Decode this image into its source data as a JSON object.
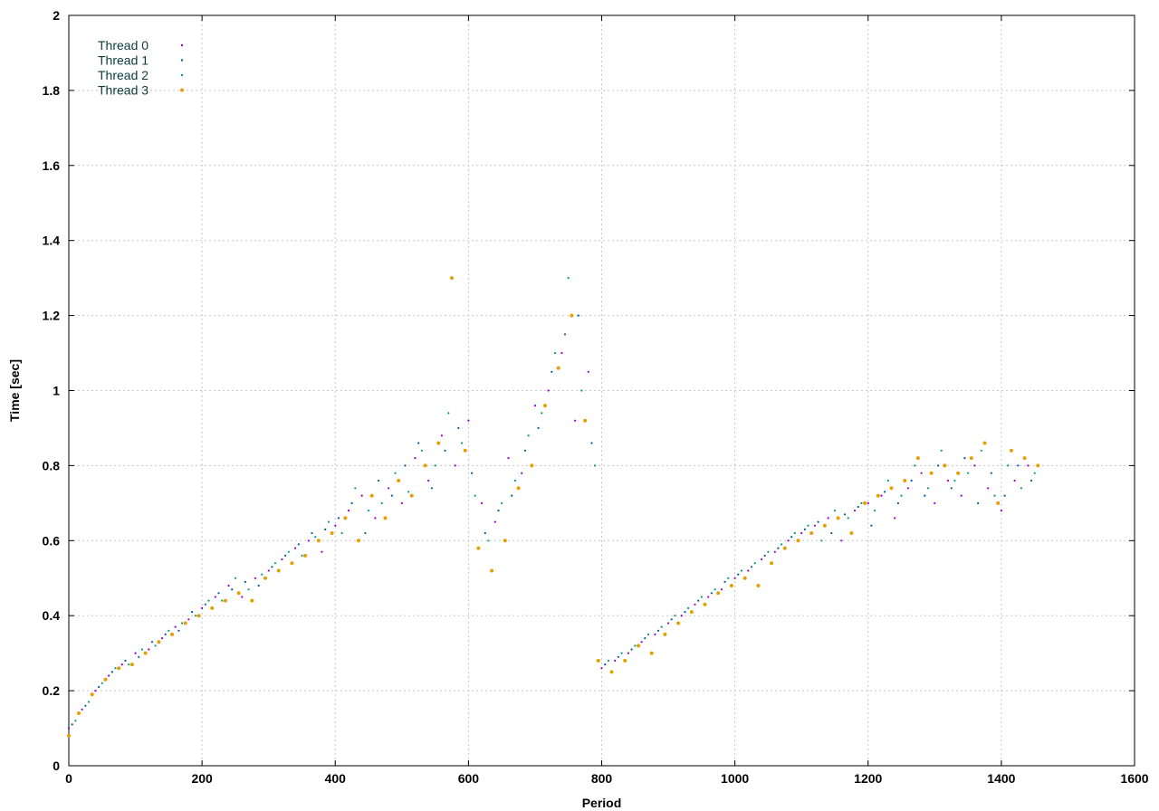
{
  "chart_data": {
    "type": "scatter",
    "title": "",
    "xlabel": "Period",
    "ylabel": "Time [sec]",
    "xlim": [
      0,
      1600
    ],
    "ylim": [
      0,
      2
    ],
    "xticks": [
      0,
      200,
      400,
      600,
      800,
      1000,
      1200,
      1400,
      1600
    ],
    "yticks": [
      0,
      0.2,
      0.4,
      0.6,
      0.8,
      1,
      1.2,
      1.4,
      1.6,
      1.8,
      2
    ],
    "grid": true,
    "legend_position": "top-left",
    "series": [
      {
        "name": "Thread 0",
        "color": "#9400d3",
        "points": [
          [
            0,
            0.1
          ],
          [
            20,
            0.15
          ],
          [
            40,
            0.2
          ],
          [
            60,
            0.24
          ],
          [
            80,
            0.27
          ],
          [
            100,
            0.3
          ],
          [
            120,
            0.31
          ],
          [
            140,
            0.34
          ],
          [
            160,
            0.37
          ],
          [
            180,
            0.39
          ],
          [
            200,
            0.42
          ],
          [
            220,
            0.45
          ],
          [
            240,
            0.48
          ],
          [
            260,
            0.45
          ],
          [
            280,
            0.5
          ],
          [
            300,
            0.52
          ],
          [
            320,
            0.55
          ],
          [
            340,
            0.58
          ],
          [
            360,
            0.6
          ],
          [
            380,
            0.57
          ],
          [
            400,
            0.64
          ],
          [
            420,
            0.68
          ],
          [
            440,
            0.72
          ],
          [
            460,
            0.66
          ],
          [
            480,
            0.74
          ],
          [
            500,
            0.7
          ],
          [
            520,
            0.82
          ],
          [
            540,
            0.76
          ],
          [
            560,
            0.88
          ],
          [
            580,
            0.8
          ],
          [
            600,
            0.92
          ],
          [
            620,
            0.7
          ],
          [
            640,
            0.65
          ],
          [
            660,
            0.82
          ],
          [
            680,
            0.78
          ],
          [
            700,
            0.96
          ],
          [
            720,
            1.0
          ],
          [
            740,
            1.1
          ],
          [
            760,
            0.92
          ],
          [
            780,
            1.05
          ],
          [
            800,
            0.26
          ],
          [
            820,
            0.28
          ],
          [
            840,
            0.3
          ],
          [
            860,
            0.33
          ],
          [
            880,
            0.35
          ],
          [
            900,
            0.38
          ],
          [
            920,
            0.4
          ],
          [
            940,
            0.43
          ],
          [
            960,
            0.45
          ],
          [
            980,
            0.47
          ],
          [
            1000,
            0.5
          ],
          [
            1020,
            0.52
          ],
          [
            1040,
            0.55
          ],
          [
            1060,
            0.57
          ],
          [
            1080,
            0.6
          ],
          [
            1100,
            0.62
          ],
          [
            1120,
            0.64
          ],
          [
            1140,
            0.66
          ],
          [
            1160,
            0.6
          ],
          [
            1180,
            0.68
          ],
          [
            1200,
            0.7
          ],
          [
            1220,
            0.72
          ],
          [
            1240,
            0.66
          ],
          [
            1260,
            0.74
          ],
          [
            1280,
            0.78
          ],
          [
            1300,
            0.7
          ],
          [
            1320,
            0.76
          ],
          [
            1340,
            0.72
          ],
          [
            1360,
            0.8
          ],
          [
            1380,
            0.74
          ],
          [
            1400,
            0.68
          ],
          [
            1420,
            0.76
          ],
          [
            1440,
            0.8
          ]
        ]
      },
      {
        "name": "Thread 1",
        "color": "#005a9c",
        "points": [
          [
            5,
            0.11
          ],
          [
            25,
            0.16
          ],
          [
            45,
            0.21
          ],
          [
            65,
            0.25
          ],
          [
            85,
            0.28
          ],
          [
            105,
            0.29
          ],
          [
            125,
            0.33
          ],
          [
            145,
            0.35
          ],
          [
            165,
            0.36
          ],
          [
            185,
            0.41
          ],
          [
            205,
            0.43
          ],
          [
            225,
            0.46
          ],
          [
            245,
            0.47
          ],
          [
            265,
            0.49
          ],
          [
            285,
            0.48
          ],
          [
            305,
            0.53
          ],
          [
            325,
            0.56
          ],
          [
            345,
            0.59
          ],
          [
            365,
            0.62
          ],
          [
            385,
            0.63
          ],
          [
            405,
            0.66
          ],
          [
            425,
            0.7
          ],
          [
            445,
            0.62
          ],
          [
            465,
            0.76
          ],
          [
            485,
            0.72
          ],
          [
            505,
            0.8
          ],
          [
            525,
            0.86
          ],
          [
            545,
            0.74
          ],
          [
            565,
            0.84
          ],
          [
            585,
            0.9
          ],
          [
            605,
            0.78
          ],
          [
            625,
            0.62
          ],
          [
            645,
            0.68
          ],
          [
            665,
            0.72
          ],
          [
            685,
            0.84
          ],
          [
            705,
            0.9
          ],
          [
            725,
            1.05
          ],
          [
            745,
            1.15
          ],
          [
            765,
            1.2
          ],
          [
            785,
            0.86
          ],
          [
            805,
            0.27
          ],
          [
            825,
            0.29
          ],
          [
            845,
            0.31
          ],
          [
            865,
            0.34
          ],
          [
            885,
            0.36
          ],
          [
            905,
            0.39
          ],
          [
            925,
            0.41
          ],
          [
            945,
            0.44
          ],
          [
            965,
            0.46
          ],
          [
            985,
            0.49
          ],
          [
            1005,
            0.51
          ],
          [
            1025,
            0.53
          ],
          [
            1045,
            0.56
          ],
          [
            1065,
            0.58
          ],
          [
            1085,
            0.61
          ],
          [
            1105,
            0.63
          ],
          [
            1125,
            0.65
          ],
          [
            1145,
            0.62
          ],
          [
            1165,
            0.67
          ],
          [
            1185,
            0.69
          ],
          [
            1205,
            0.64
          ],
          [
            1225,
            0.73
          ],
          [
            1245,
            0.7
          ],
          [
            1265,
            0.76
          ],
          [
            1285,
            0.72
          ],
          [
            1305,
            0.8
          ],
          [
            1325,
            0.74
          ],
          [
            1345,
            0.82
          ],
          [
            1365,
            0.7
          ],
          [
            1385,
            0.78
          ],
          [
            1405,
            0.72
          ],
          [
            1425,
            0.8
          ],
          [
            1445,
            0.76
          ]
        ]
      },
      {
        "name": "Thread 2",
        "color": "#009e73",
        "points": [
          [
            10,
            0.12
          ],
          [
            30,
            0.17
          ],
          [
            50,
            0.22
          ],
          [
            70,
            0.26
          ],
          [
            90,
            0.27
          ],
          [
            110,
            0.31
          ],
          [
            130,
            0.32
          ],
          [
            150,
            0.36
          ],
          [
            170,
            0.38
          ],
          [
            190,
            0.4
          ],
          [
            210,
            0.44
          ],
          [
            230,
            0.44
          ],
          [
            250,
            0.5
          ],
          [
            270,
            0.47
          ],
          [
            290,
            0.51
          ],
          [
            310,
            0.54
          ],
          [
            330,
            0.57
          ],
          [
            350,
            0.56
          ],
          [
            370,
            0.61
          ],
          [
            390,
            0.65
          ],
          [
            410,
            0.62
          ],
          [
            430,
            0.74
          ],
          [
            450,
            0.68
          ],
          [
            470,
            0.7
          ],
          [
            490,
            0.78
          ],
          [
            510,
            0.73
          ],
          [
            530,
            0.84
          ],
          [
            550,
            0.8
          ],
          [
            570,
            0.94
          ],
          [
            590,
            0.86
          ],
          [
            610,
            0.72
          ],
          [
            630,
            0.6
          ],
          [
            650,
            0.7
          ],
          [
            670,
            0.76
          ],
          [
            690,
            0.88
          ],
          [
            710,
            0.94
          ],
          [
            730,
            1.1
          ],
          [
            750,
            1.3
          ],
          [
            770,
            1.0
          ],
          [
            790,
            0.8
          ],
          [
            810,
            0.28
          ],
          [
            830,
            0.3
          ],
          [
            850,
            0.32
          ],
          [
            870,
            0.35
          ],
          [
            890,
            0.37
          ],
          [
            910,
            0.4
          ],
          [
            930,
            0.42
          ],
          [
            950,
            0.45
          ],
          [
            970,
            0.47
          ],
          [
            990,
            0.5
          ],
          [
            1010,
            0.52
          ],
          [
            1030,
            0.54
          ],
          [
            1050,
            0.57
          ],
          [
            1070,
            0.59
          ],
          [
            1090,
            0.62
          ],
          [
            1110,
            0.64
          ],
          [
            1130,
            0.6
          ],
          [
            1150,
            0.68
          ],
          [
            1170,
            0.66
          ],
          [
            1190,
            0.7
          ],
          [
            1210,
            0.68
          ],
          [
            1230,
            0.76
          ],
          [
            1250,
            0.72
          ],
          [
            1270,
            0.8
          ],
          [
            1290,
            0.74
          ],
          [
            1310,
            0.84
          ],
          [
            1330,
            0.76
          ],
          [
            1350,
            0.78
          ],
          [
            1370,
            0.84
          ],
          [
            1390,
            0.72
          ],
          [
            1410,
            0.8
          ],
          [
            1430,
            0.74
          ],
          [
            1450,
            0.78
          ]
        ]
      },
      {
        "name": "Thread 3",
        "color": "#e69f00",
        "points": [
          [
            0,
            0.08
          ],
          [
            15,
            0.14
          ],
          [
            35,
            0.19
          ],
          [
            55,
            0.23
          ],
          [
            75,
            0.26
          ],
          [
            95,
            0.27
          ],
          [
            115,
            0.3
          ],
          [
            135,
            0.33
          ],
          [
            155,
            0.35
          ],
          [
            175,
            0.38
          ],
          [
            195,
            0.4
          ],
          [
            215,
            0.42
          ],
          [
            235,
            0.44
          ],
          [
            255,
            0.46
          ],
          [
            275,
            0.44
          ],
          [
            295,
            0.5
          ],
          [
            315,
            0.52
          ],
          [
            335,
            0.54
          ],
          [
            355,
            0.56
          ],
          [
            375,
            0.6
          ],
          [
            395,
            0.62
          ],
          [
            415,
            0.66
          ],
          [
            435,
            0.6
          ],
          [
            455,
            0.72
          ],
          [
            475,
            0.66
          ],
          [
            495,
            0.76
          ],
          [
            515,
            0.72
          ],
          [
            535,
            0.8
          ],
          [
            555,
            0.86
          ],
          [
            575,
            1.3
          ],
          [
            595,
            0.84
          ],
          [
            615,
            0.58
          ],
          [
            635,
            0.52
          ],
          [
            655,
            0.6
          ],
          [
            675,
            0.74
          ],
          [
            695,
            0.8
          ],
          [
            715,
            0.96
          ],
          [
            735,
            1.06
          ],
          [
            755,
            1.2
          ],
          [
            775,
            0.92
          ],
          [
            795,
            0.28
          ],
          [
            815,
            0.25
          ],
          [
            835,
            0.28
          ],
          [
            855,
            0.32
          ],
          [
            875,
            0.3
          ],
          [
            895,
            0.35
          ],
          [
            915,
            0.38
          ],
          [
            935,
            0.41
          ],
          [
            955,
            0.43
          ],
          [
            975,
            0.46
          ],
          [
            995,
            0.48
          ],
          [
            1015,
            0.5
          ],
          [
            1035,
            0.48
          ],
          [
            1055,
            0.54
          ],
          [
            1075,
            0.58
          ],
          [
            1095,
            0.6
          ],
          [
            1115,
            0.62
          ],
          [
            1135,
            0.64
          ],
          [
            1155,
            0.66
          ],
          [
            1175,
            0.62
          ],
          [
            1195,
            0.7
          ],
          [
            1215,
            0.72
          ],
          [
            1235,
            0.74
          ],
          [
            1255,
            0.76
          ],
          [
            1275,
            0.82
          ],
          [
            1295,
            0.78
          ],
          [
            1315,
            0.8
          ],
          [
            1335,
            0.78
          ],
          [
            1355,
            0.82
          ],
          [
            1375,
            0.86
          ],
          [
            1395,
            0.7
          ],
          [
            1415,
            0.84
          ],
          [
            1435,
            0.82
          ],
          [
            1455,
            0.8
          ]
        ]
      }
    ]
  }
}
